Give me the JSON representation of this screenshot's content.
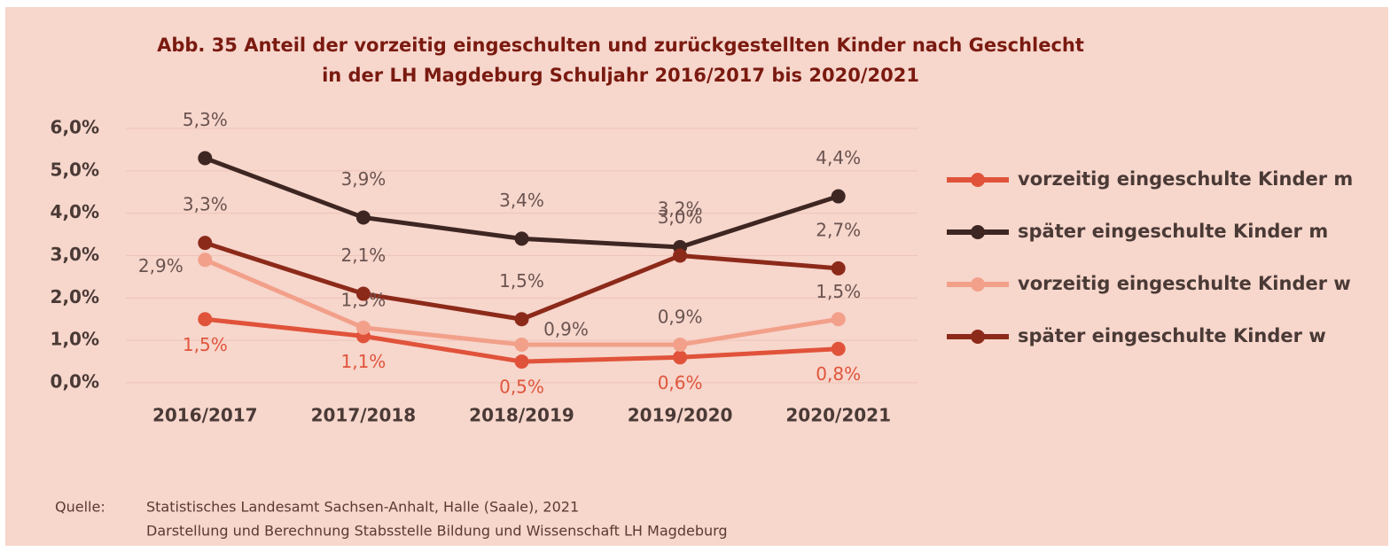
{
  "chart_data": {
    "type": "line",
    "title": "Abb. 35 Anteil der vorzeitig eingeschulten und zurückgestellten Kinder nach Geschlecht",
    "subtitle": "in der LH Magdeburg Schuljahr 2016/2017 bis 2020/2021",
    "categories": [
      "2016/2017",
      "2017/2018",
      "2018/2019",
      "2019/2020",
      "2020/2021"
    ],
    "series": [
      {
        "name": "vorzeitig eingeschulte Kinder m",
        "color": "#e0533a",
        "values": [
          1.5,
          1.1,
          0.5,
          0.6,
          0.8
        ],
        "value_labels": [
          "1,5%",
          "1,1%",
          "0,5%",
          "0,6%",
          "0,8%"
        ]
      },
      {
        "name": "später eingeschulte Kinder m",
        "color": "#3e2622",
        "values": [
          5.3,
          3.9,
          3.4,
          3.2,
          4.4
        ],
        "value_labels": [
          "5,3%",
          "3,9%",
          "3,4%",
          "3,2%",
          "4,4%"
        ]
      },
      {
        "name": "vorzeitig eingeschulte Kinder w",
        "color": "#f2a08a",
        "values": [
          2.9,
          1.3,
          0.9,
          0.9,
          1.5
        ],
        "value_labels": [
          "2,9%",
          "1,3%",
          "0,9%",
          "0,9%",
          "1,5%"
        ]
      },
      {
        "name": "später eingeschulte Kinder w",
        "color": "#8c2a1a",
        "values": [
          3.3,
          2.1,
          1.5,
          3.0,
          2.7
        ],
        "value_labels": [
          "3,3%",
          "2,1%",
          "1,5%",
          "3,0%",
          "2,7%"
        ]
      }
    ],
    "ylim": [
      0,
      6
    ],
    "yticks": [
      {
        "value": 0,
        "label": "0,0%"
      },
      {
        "value": 1,
        "label": "1,0%"
      },
      {
        "value": 2,
        "label": "2,0%"
      },
      {
        "value": 3,
        "label": "3,0%"
      },
      {
        "value": 4,
        "label": "4,0%"
      },
      {
        "value": 5,
        "label": "5,0%"
      },
      {
        "value": 6,
        "label": "6,0%"
      }
    ],
    "grid": true,
    "legend": "right",
    "source_label": "Quelle:",
    "source_lines": [
      "Statistisches Landesamt Sachsen-Anhalt, Halle (Saale), 2021",
      "Darstellung und Berechnung Stabsstelle Bildung und Wissenschaft LH Magdeburg"
    ]
  }
}
